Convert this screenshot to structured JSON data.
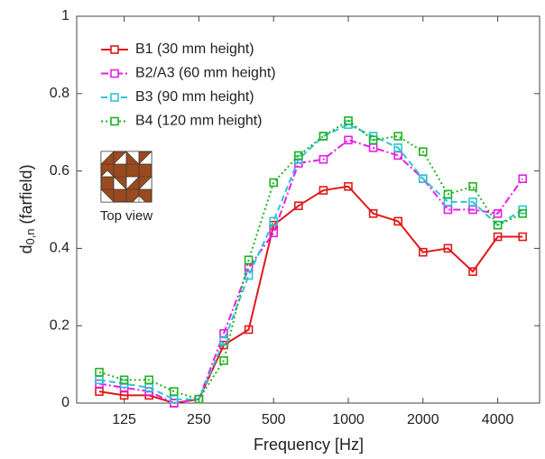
{
  "chart_data": {
    "type": "line",
    "xlabel": "Frequency [Hz]",
    "ylabel_parts": [
      "d",
      "0,n",
      "(farfield)"
    ],
    "inset_label": "Top view",
    "categories": [
      null,
      "125",
      null,
      null,
      "250",
      null,
      null,
      "500",
      null,
      null,
      "1000",
      null,
      null,
      "2000",
      null,
      null,
      "4000",
      null
    ],
    "series": [
      {
        "name": "B1 (30 mm height)",
        "color": "#e0191b",
        "linestyle": "solid",
        "values": [
          0.03,
          0.02,
          0.02,
          0.0,
          0.01,
          0.15,
          0.19,
          0.46,
          0.51,
          0.55,
          0.56,
          0.49,
          0.47,
          0.39,
          0.4,
          0.34,
          0.43,
          0.43
        ]
      },
      {
        "name": "B2/A3 (60 mm height)",
        "color": "#e61ee6",
        "linestyle": "dashdot",
        "values": [
          0.05,
          0.04,
          0.03,
          0.0,
          0.01,
          0.18,
          0.35,
          0.44,
          0.62,
          0.63,
          0.68,
          0.66,
          0.64,
          0.58,
          0.5,
          0.5,
          0.49,
          0.58
        ]
      },
      {
        "name": "B3 (90 mm height)",
        "color": "#2fc4d4",
        "linestyle": "dashed",
        "values": [
          0.06,
          0.05,
          0.04,
          0.01,
          0.01,
          0.16,
          0.33,
          0.47,
          0.63,
          0.69,
          0.72,
          0.69,
          0.66,
          0.58,
          0.52,
          0.52,
          0.46,
          0.5
        ]
      },
      {
        "name": "B4 (120 mm height)",
        "color": "#22b322",
        "linestyle": "dotted",
        "values": [
          0.08,
          0.06,
          0.06,
          0.03,
          0.01,
          0.11,
          0.37,
          0.57,
          0.64,
          0.69,
          0.73,
          0.68,
          0.69,
          0.65,
          0.54,
          0.56,
          0.46,
          0.49
        ]
      }
    ],
    "ylim": [
      0,
      1
    ],
    "yticks": [
      0,
      0.2,
      0.4,
      0.6,
      0.8,
      1
    ],
    "legend": "upper-left"
  }
}
